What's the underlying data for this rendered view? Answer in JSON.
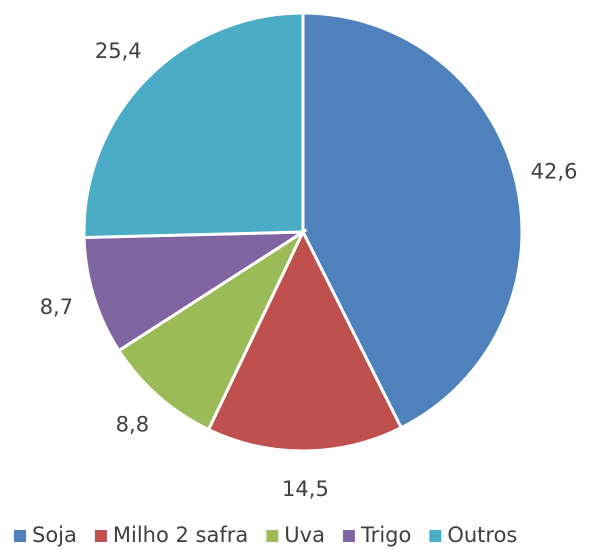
{
  "chart_data": {
    "type": "pie",
    "categories": [
      "Soja",
      "Milho 2 safra",
      "Uva",
      "Trigo",
      "Outros"
    ],
    "values": [
      42.6,
      14.5,
      8.8,
      8.7,
      25.4
    ],
    "value_labels": [
      "42,6",
      "14,5",
      "8,8",
      "8,7",
      "25,4"
    ],
    "colors": [
      "#4f81bd",
      "#c0504d",
      "#9bbb59",
      "#8064a2",
      "#4bacc6"
    ],
    "legend": "bottom"
  }
}
